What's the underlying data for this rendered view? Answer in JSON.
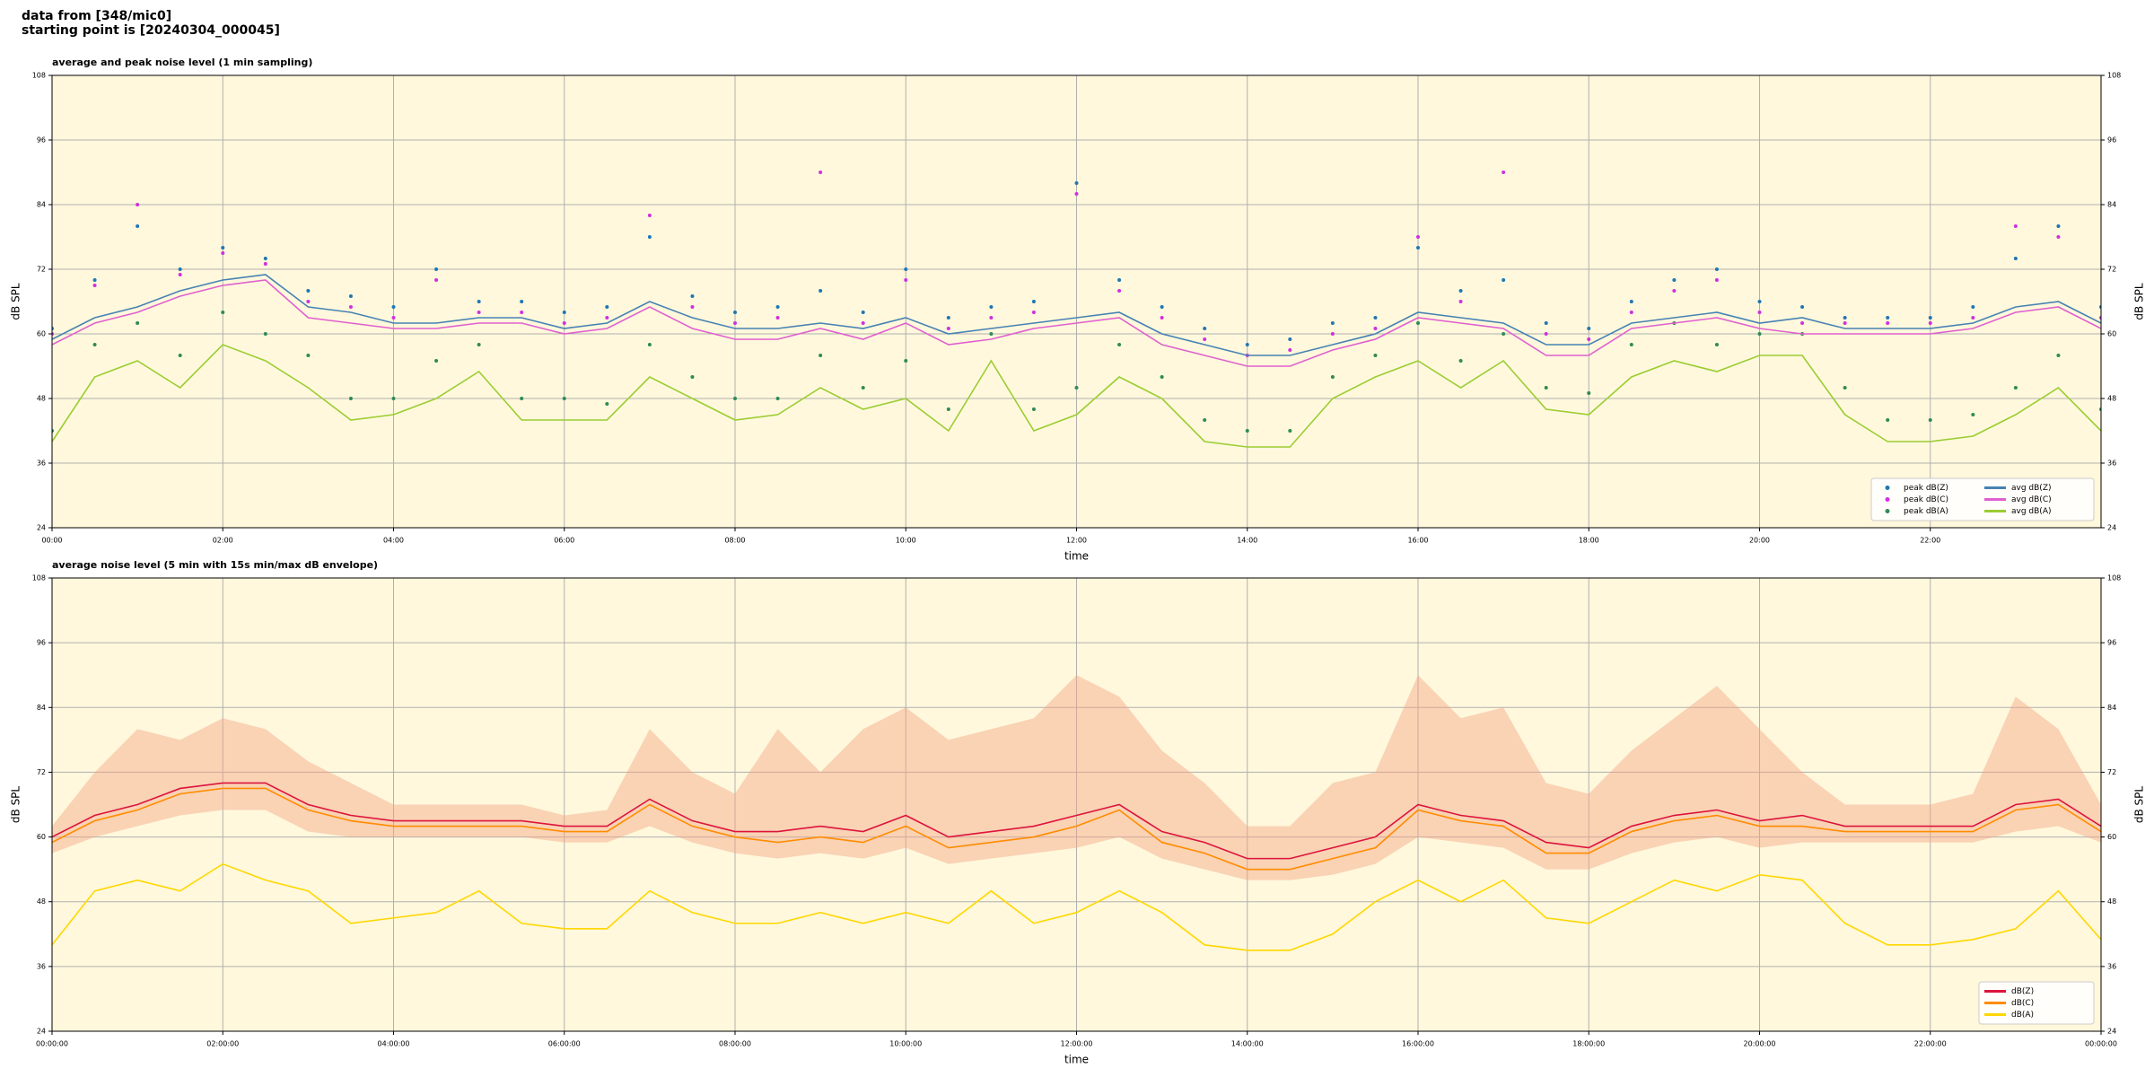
{
  "header": {
    "lines": [
      "data from [348/mic0]",
      "starting point is [20240304_000045]"
    ]
  },
  "chart_data": [
    {
      "type": "line",
      "title": "average and peak noise level (1 min sampling)",
      "xlabel": "time",
      "ylabel": "dB SPL",
      "xlim": [
        0,
        24
      ],
      "ylim": [
        24,
        108
      ],
      "yticks": [
        24,
        36,
        48,
        60,
        72,
        84,
        96,
        108
      ],
      "xticks": [
        {
          "value": 0,
          "label": "00:00"
        },
        {
          "value": 2,
          "label": "02:00"
        },
        {
          "value": 4,
          "label": "04:00"
        },
        {
          "value": 6,
          "label": "06:00"
        },
        {
          "value": 8,
          "label": "08:00"
        },
        {
          "value": 10,
          "label": "10:00"
        },
        {
          "value": 12,
          "label": "12:00"
        },
        {
          "value": 14,
          "label": "14:00"
        },
        {
          "value": 16,
          "label": "16:00"
        },
        {
          "value": 18,
          "label": "18:00"
        },
        {
          "value": 20,
          "label": "20:00"
        },
        {
          "value": 22,
          "label": "22:00"
        }
      ],
      "grid": true,
      "legend": "lower right",
      "legend_columns": 2,
      "background": "#fff8dc",
      "x": [
        0,
        0.5,
        1,
        1.5,
        2,
        2.5,
        3,
        3.5,
        4,
        4.5,
        5,
        5.5,
        6,
        6.5,
        7,
        7.5,
        8,
        8.5,
        9,
        9.5,
        10,
        10.5,
        11,
        11.5,
        12,
        12.5,
        13,
        13.5,
        14,
        14.5,
        15,
        15.5,
        16,
        16.5,
        17,
        17.5,
        18,
        18.5,
        19,
        19.5,
        20,
        20.5,
        21,
        21.5,
        22,
        22.5,
        23,
        23.5,
        24
      ],
      "series": [
        {
          "name": "peak dB(Z)",
          "kind": "scatter",
          "color": "#1f77b4",
          "values": [
            61,
            70,
            80,
            72,
            76,
            74,
            68,
            67,
            65,
            72,
            66,
            66,
            64,
            65,
            78,
            67,
            64,
            65,
            68,
            64,
            72,
            63,
            65,
            66,
            88,
            70,
            65,
            61,
            58,
            59,
            62,
            63,
            76,
            68,
            70,
            62,
            61,
            66,
            70,
            72,
            66,
            65,
            63,
            63,
            63,
            65,
            74,
            80,
            65
          ]
        },
        {
          "name": "peak dB(C)",
          "kind": "scatter",
          "color": "#d030e0",
          "values": [
            60,
            69,
            84,
            71,
            75,
            73,
            66,
            65,
            63,
            70,
            64,
            64,
            62,
            63,
            82,
            65,
            62,
            63,
            90,
            62,
            70,
            61,
            63,
            64,
            86,
            68,
            63,
            59,
            56,
            57,
            60,
            61,
            78,
            66,
            90,
            60,
            59,
            64,
            68,
            70,
            64,
            62,
            62,
            62,
            62,
            63,
            80,
            78,
            63
          ]
        },
        {
          "name": "peak dB(A)",
          "kind": "scatter",
          "color": "#2e8b57",
          "values": [
            42,
            58,
            62,
            56,
            64,
            60,
            56,
            48,
            48,
            55,
            58,
            48,
            48,
            47,
            58,
            52,
            48,
            48,
            56,
            50,
            55,
            46,
            60,
            46,
            50,
            58,
            52,
            44,
            42,
            42,
            52,
            56,
            62,
            55,
            60,
            50,
            49,
            58,
            62,
            58,
            60,
            60,
            50,
            44,
            44,
            45,
            50,
            56,
            46
          ]
        },
        {
          "name": "avg dB(Z)",
          "kind": "line",
          "color": "#4682b4",
          "values": [
            59,
            63,
            65,
            68,
            70,
            71,
            65,
            64,
            62,
            62,
            63,
            63,
            61,
            62,
            66,
            63,
            61,
            61,
            62,
            61,
            63,
            60,
            61,
            62,
            63,
            64,
            60,
            58,
            56,
            56,
            58,
            60,
            64,
            63,
            62,
            58,
            58,
            62,
            63,
            64,
            62,
            63,
            61,
            61,
            61,
            62,
            65,
            66,
            62
          ]
        },
        {
          "name": "avg dB(C)",
          "kind": "line",
          "color": "#e060d0",
          "values": [
            58,
            62,
            64,
            67,
            69,
            70,
            63,
            62,
            61,
            61,
            62,
            62,
            60,
            61,
            65,
            61,
            59,
            59,
            61,
            59,
            62,
            58,
            59,
            61,
            62,
            63,
            58,
            56,
            54,
            54,
            57,
            59,
            63,
            62,
            61,
            56,
            56,
            61,
            62,
            63,
            61,
            60,
            60,
            60,
            60,
            61,
            64,
            65,
            61
          ]
        },
        {
          "name": "avg dB(A)",
          "kind": "line",
          "color": "#9acd32",
          "values": [
            40,
            52,
            55,
            50,
            58,
            55,
            50,
            44,
            45,
            48,
            53,
            44,
            44,
            44,
            52,
            48,
            44,
            45,
            50,
            46,
            48,
            42,
            55,
            42,
            45,
            52,
            48,
            40,
            39,
            39,
            48,
            52,
            55,
            50,
            55,
            46,
            45,
            52,
            55,
            53,
            56,
            56,
            45,
            40,
            40,
            41,
            45,
            50,
            42
          ]
        }
      ]
    },
    {
      "type": "line",
      "title": "average noise level (5 min with 15s min/max dB envelope)",
      "xlabel": "time",
      "ylabel": "dB SPL",
      "xlim": [
        0,
        24
      ],
      "ylim": [
        24,
        108
      ],
      "yticks": [
        24,
        36,
        48,
        60,
        72,
        84,
        96,
        108
      ],
      "xticks": [
        {
          "value": 0,
          "label": "00:00:00"
        },
        {
          "value": 2,
          "label": "02:00:00"
        },
        {
          "value": 4,
          "label": "04:00:00"
        },
        {
          "value": 6,
          "label": "06:00:00"
        },
        {
          "value": 8,
          "label": "08:00:00"
        },
        {
          "value": 10,
          "label": "10:00:00"
        },
        {
          "value": 12,
          "label": "12:00:00"
        },
        {
          "value": 14,
          "label": "14:00:00"
        },
        {
          "value": 16,
          "label": "16:00:00"
        },
        {
          "value": 18,
          "label": "18:00:00"
        },
        {
          "value": 20,
          "label": "20:00:00"
        },
        {
          "value": 22,
          "label": "22:00:00"
        },
        {
          "value": 24,
          "label": "00:00:00"
        }
      ],
      "grid": true,
      "legend": "lower right",
      "legend_columns": 1,
      "background": "#fff8dc",
      "x": [
        0,
        0.5,
        1,
        1.5,
        2,
        2.5,
        3,
        3.5,
        4,
        4.5,
        5,
        5.5,
        6,
        6.5,
        7,
        7.5,
        8,
        8.5,
        9,
        9.5,
        10,
        10.5,
        11,
        11.5,
        12,
        12.5,
        13,
        13.5,
        14,
        14.5,
        15,
        15.5,
        16,
        16.5,
        17,
        17.5,
        18,
        18.5,
        19,
        19.5,
        20,
        20.5,
        21,
        21.5,
        22,
        22.5,
        23,
        23.5,
        24
      ],
      "envelope": {
        "color": "#f4a582",
        "upper": [
          62,
          72,
          80,
          78,
          82,
          80,
          74,
          70,
          66,
          66,
          66,
          66,
          64,
          65,
          80,
          72,
          68,
          80,
          72,
          80,
          84,
          78,
          80,
          82,
          90,
          86,
          76,
          70,
          62,
          62,
          70,
          72,
          90,
          82,
          84,
          70,
          68,
          76,
          82,
          88,
          80,
          72,
          66,
          66,
          66,
          68,
          86,
          80,
          66
        ],
        "lower": [
          57,
          60,
          62,
          64,
          65,
          65,
          61,
          60,
          60,
          60,
          60,
          60,
          59,
          59,
          62,
          59,
          57,
          56,
          57,
          56,
          58,
          55,
          56,
          57,
          58,
          60,
          56,
          54,
          52,
          52,
          53,
          55,
          60,
          59,
          58,
          54,
          54,
          57,
          59,
          60,
          58,
          59,
          59,
          59,
          59,
          59,
          61,
          62,
          59
        ]
      },
      "series": [
        {
          "name": "dB(Z)",
          "kind": "line",
          "color": "#dc143c",
          "values": [
            60,
            64,
            66,
            69,
            70,
            70,
            66,
            64,
            63,
            63,
            63,
            63,
            62,
            62,
            67,
            63,
            61,
            61,
            62,
            61,
            64,
            60,
            61,
            62,
            64,
            66,
            61,
            59,
            56,
            56,
            58,
            60,
            66,
            64,
            63,
            59,
            58,
            62,
            64,
            65,
            63,
            64,
            62,
            62,
            62,
            62,
            66,
            67,
            62
          ]
        },
        {
          "name": "dB(C)",
          "kind": "line",
          "color": "#ff8c00",
          "values": [
            59,
            63,
            65,
            68,
            69,
            69,
            65,
            63,
            62,
            62,
            62,
            62,
            61,
            61,
            66,
            62,
            60,
            59,
            60,
            59,
            62,
            58,
            59,
            60,
            62,
            65,
            59,
            57,
            54,
            54,
            56,
            58,
            65,
            63,
            62,
            57,
            57,
            61,
            63,
            64,
            62,
            62,
            61,
            61,
            61,
            61,
            65,
            66,
            61
          ]
        },
        {
          "name": "dB(A)",
          "kind": "line",
          "color": "#ffd700",
          "values": [
            40,
            50,
            52,
            50,
            55,
            52,
            50,
            44,
            45,
            46,
            50,
            44,
            43,
            43,
            50,
            46,
            44,
            44,
            46,
            44,
            46,
            44,
            50,
            44,
            46,
            50,
            46,
            40,
            39,
            39,
            42,
            48,
            52,
            48,
            52,
            45,
            44,
            48,
            52,
            50,
            53,
            52,
            44,
            40,
            40,
            41,
            43,
            50,
            41
          ]
        }
      ]
    }
  ]
}
